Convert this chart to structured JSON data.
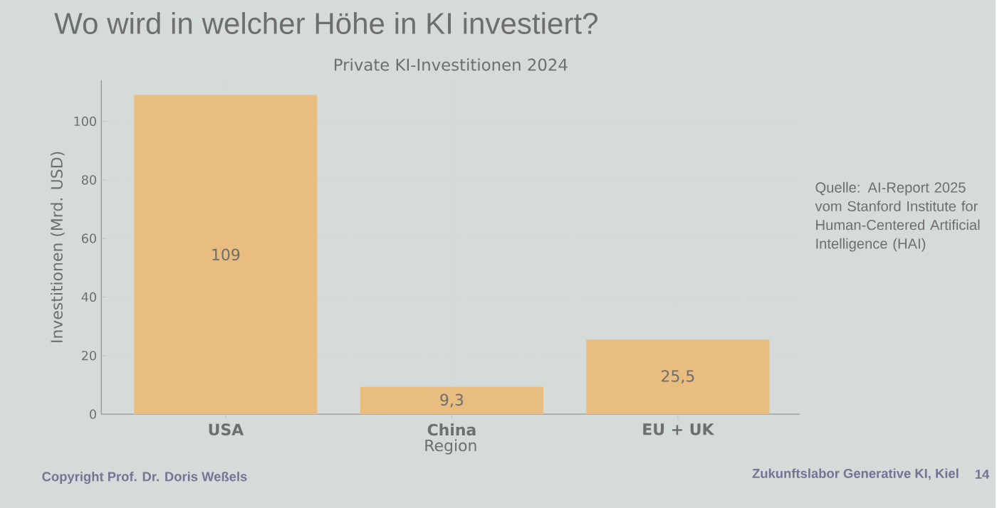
{
  "chart_data": {
    "type": "bar",
    "title": "Wo wird in welcher Höhe in KI investiert?",
    "subtitle": "Private KI-Investitionen 2024",
    "categories": [
      "USA",
      "China",
      "EU + UK"
    ],
    "values": [
      109,
      9.3,
      25.5
    ],
    "value_labels": [
      "109",
      "9,3",
      "25,5"
    ],
    "color": "#e9bd80",
    "xlabel": "Region",
    "ylabel": "Investitionen (Mrd. USD)",
    "ylim": [
      0,
      114
    ],
    "yticks": [
      0,
      20,
      40,
      60,
      80,
      100
    ],
    "grid": true,
    "annotations": [
      "Quelle: AI-Report 2025 vom Stanford Institute for Human-Centered Artificial Intelligence (HAI)",
      "Copyright Prof. Dr. Doris Weßels",
      "Zukunftslabor Generative KI, Kiel",
      "14"
    ]
  }
}
